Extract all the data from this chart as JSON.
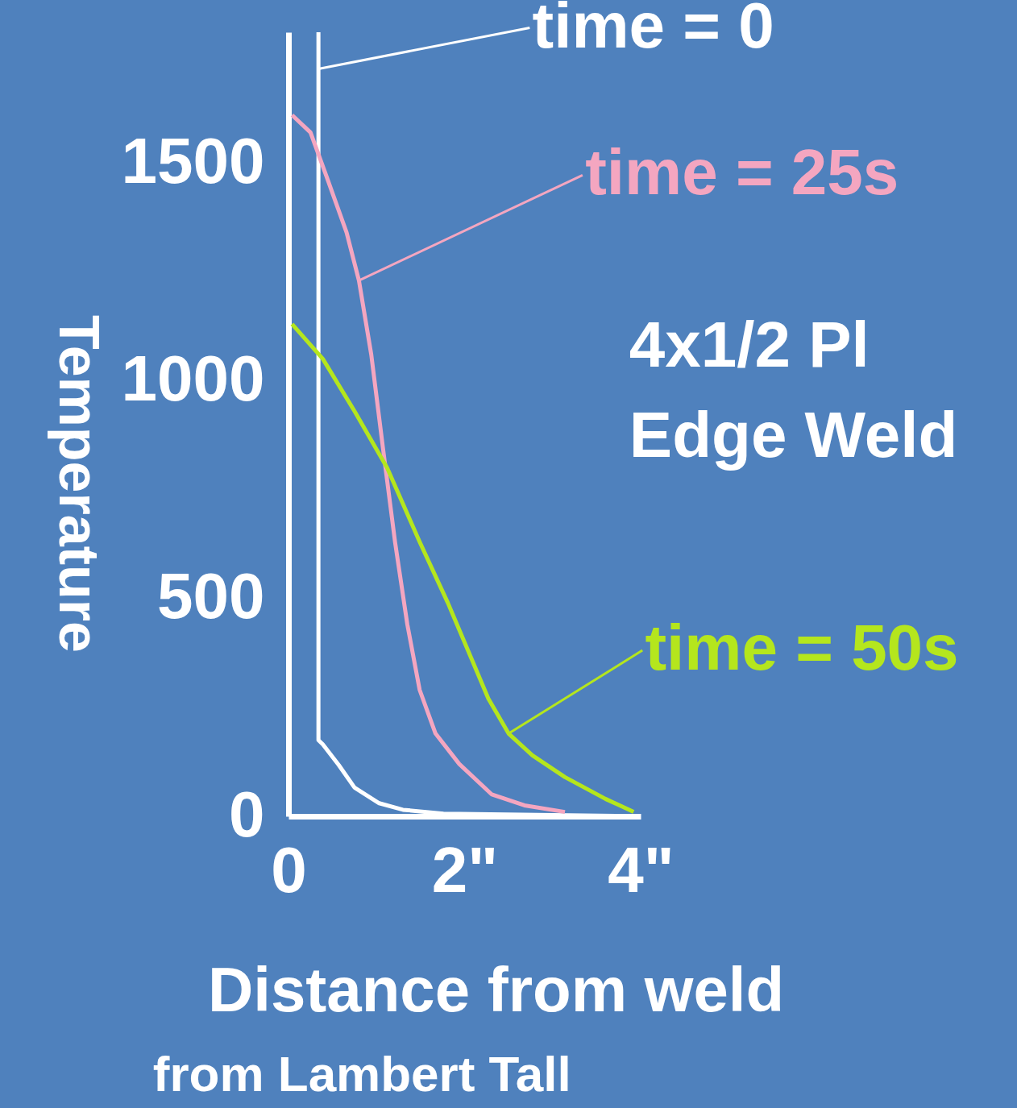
{
  "chart_data": {
    "type": "line",
    "xlabel": "Distance from weld",
    "ylabel": "Temperature",
    "xlim": [
      0,
      4
    ],
    "ylim": [
      0,
      1800
    ],
    "xticks": [
      0,
      {
        "value": 2,
        "label": "2\""
      },
      {
        "value": 4,
        "label": "4\""
      }
    ],
    "yticks": [
      0,
      500,
      1000,
      1500
    ],
    "grid": false,
    "legend": "right",
    "marker": "none",
    "line_style": "solid",
    "annotations": [
      "4x1/2 Pl",
      "Edge Weld",
      "from Lambert Tall"
    ],
    "series": [
      {
        "name": "time = 0",
        "color": "#ffffff",
        "x": [
          0.34,
          0.34,
          0.39,
          0.57,
          0.75,
          1.03,
          1.3,
          1.76,
          4
        ],
        "values": [
          1800,
          175,
          165,
          118,
          66,
          30,
          15,
          6,
          0
        ]
      },
      {
        "name": "time = 25s",
        "color": "#f4a6c0",
        "x": [
          0.04,
          0.25,
          0.43,
          0.66,
          0.8,
          0.94,
          1.07,
          1.21,
          1.35,
          1.49,
          1.67,
          1.94,
          2.31,
          2.68,
          3.14
        ],
        "values": [
          1610,
          1570,
          1470,
          1340,
          1230,
          1060,
          850,
          630,
          440,
          290,
          190,
          120,
          50,
          25,
          10
        ]
      },
      {
        "name": "time = 50s",
        "color": "#b5e61d",
        "x": [
          0.04,
          0.39,
          0.75,
          1.12,
          1.49,
          1.81,
          2.04,
          2.27,
          2.5,
          2.77,
          3.14,
          3.6,
          3.92
        ],
        "values": [
          1130,
          1050,
          930,
          800,
          630,
          490,
          380,
          270,
          190,
          140,
          90,
          40,
          10
        ]
      }
    ]
  }
}
